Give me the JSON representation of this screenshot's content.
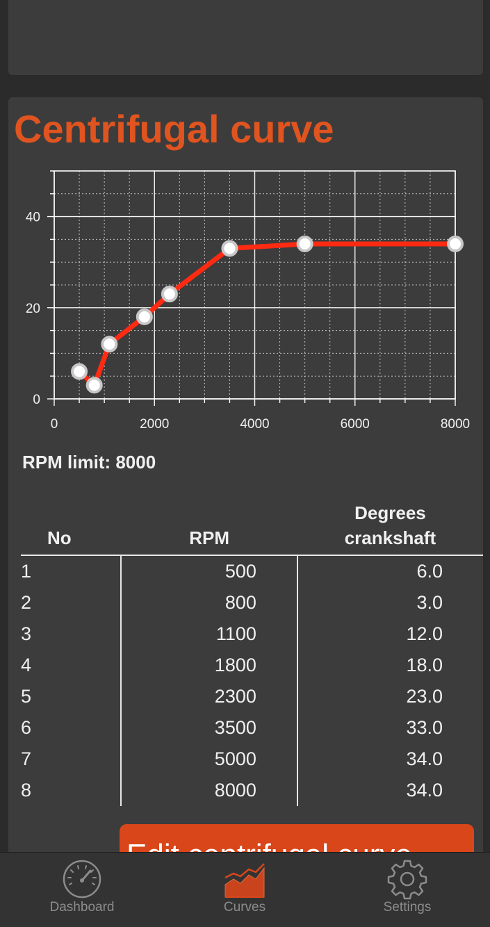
{
  "card": {
    "title": "Centrifugal curve",
    "rpm_limit": "RPM limit: 8000"
  },
  "chart_data": {
    "type": "line",
    "title": "",
    "xlabel": "",
    "ylabel": "",
    "xlim": [
      0,
      8000
    ],
    "ylim": [
      0,
      50
    ],
    "x_ticks": [
      "0",
      "2000",
      "4000",
      "6000",
      "8000"
    ],
    "y_ticks": [
      "0",
      "20",
      "40"
    ],
    "grid": true,
    "colors": {
      "line": "#ff2a12",
      "point_fill": "#ffffff",
      "point_stroke": "#c8c8c8",
      "grid": "#ffffff"
    },
    "series": [
      {
        "x": [
          500,
          800,
          1100,
          1800,
          2300,
          3500,
          5000,
          8000
        ],
        "y": [
          6,
          3,
          12,
          18,
          23,
          33,
          34,
          34
        ]
      }
    ]
  },
  "table": {
    "headers": {
      "no": "No",
      "rpm": "RPM",
      "degrees_1": "Degrees",
      "degrees_2": "crankshaft"
    },
    "rows": [
      {
        "no": "1",
        "rpm": "500",
        "deg": "6.0"
      },
      {
        "no": "2",
        "rpm": "800",
        "deg": "3.0"
      },
      {
        "no": "3",
        "rpm": "1100",
        "deg": "12.0"
      },
      {
        "no": "4",
        "rpm": "1800",
        "deg": "18.0"
      },
      {
        "no": "5",
        "rpm": "2300",
        "deg": "23.0"
      },
      {
        "no": "6",
        "rpm": "3500",
        "deg": "33.0"
      },
      {
        "no": "7",
        "rpm": "5000",
        "deg": "34.0"
      },
      {
        "no": "8",
        "rpm": "8000",
        "deg": "34.0"
      }
    ]
  },
  "edit_button": {
    "label": "Edit centrifugal curve"
  },
  "tab_bar": {
    "tabs": [
      {
        "label": "Dashboard",
        "icon": "speedometer-icon",
        "active": false
      },
      {
        "label": "Curves",
        "icon": "curve-chart-icon",
        "active": true
      },
      {
        "label": "Settings",
        "icon": "gear-icon",
        "active": false
      }
    ],
    "accent": "#d9461a"
  }
}
